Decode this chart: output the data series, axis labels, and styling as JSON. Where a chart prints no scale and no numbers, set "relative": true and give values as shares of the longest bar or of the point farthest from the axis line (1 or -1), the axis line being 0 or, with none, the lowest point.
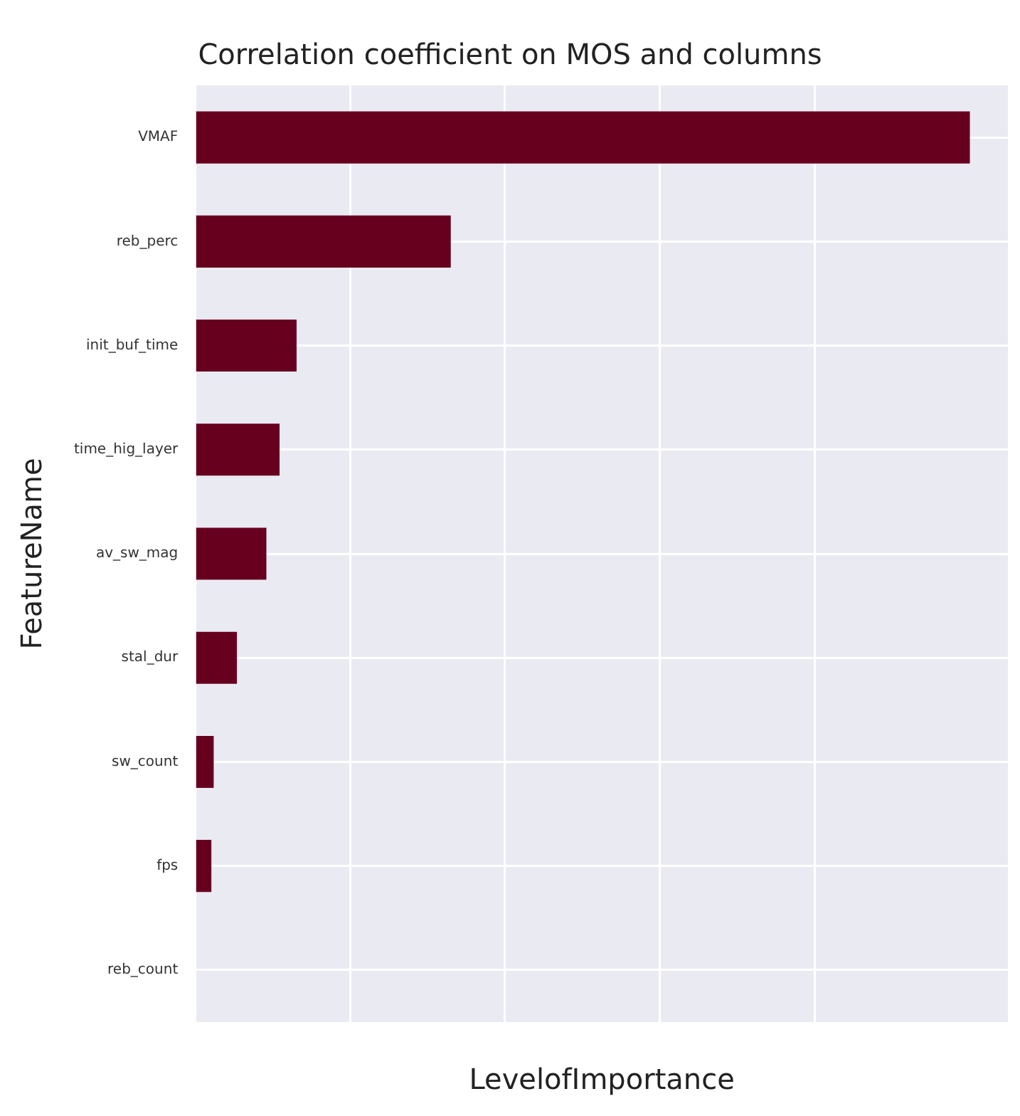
{
  "chart_data": {
    "type": "bar",
    "orientation": "horizontal",
    "relative": true,
    "title": "Correlation coefficient on MOS and columns",
    "xlabel": "LevelofImportance",
    "ylabel": "FeatureName",
    "categories": [
      "VMAF",
      "reb_perc",
      "init_buf_time",
      "time_hig_layer",
      "av_sw_mag",
      "stal_dur",
      "sw_count",
      "fps",
      "reb_count"
    ],
    "values": [
      1,
      0.33,
      0.131,
      0.109,
      0.092,
      0.054,
      0.024,
      0.021,
      0
    ],
    "color": "#67001f",
    "grid": true,
    "legend": false
  }
}
